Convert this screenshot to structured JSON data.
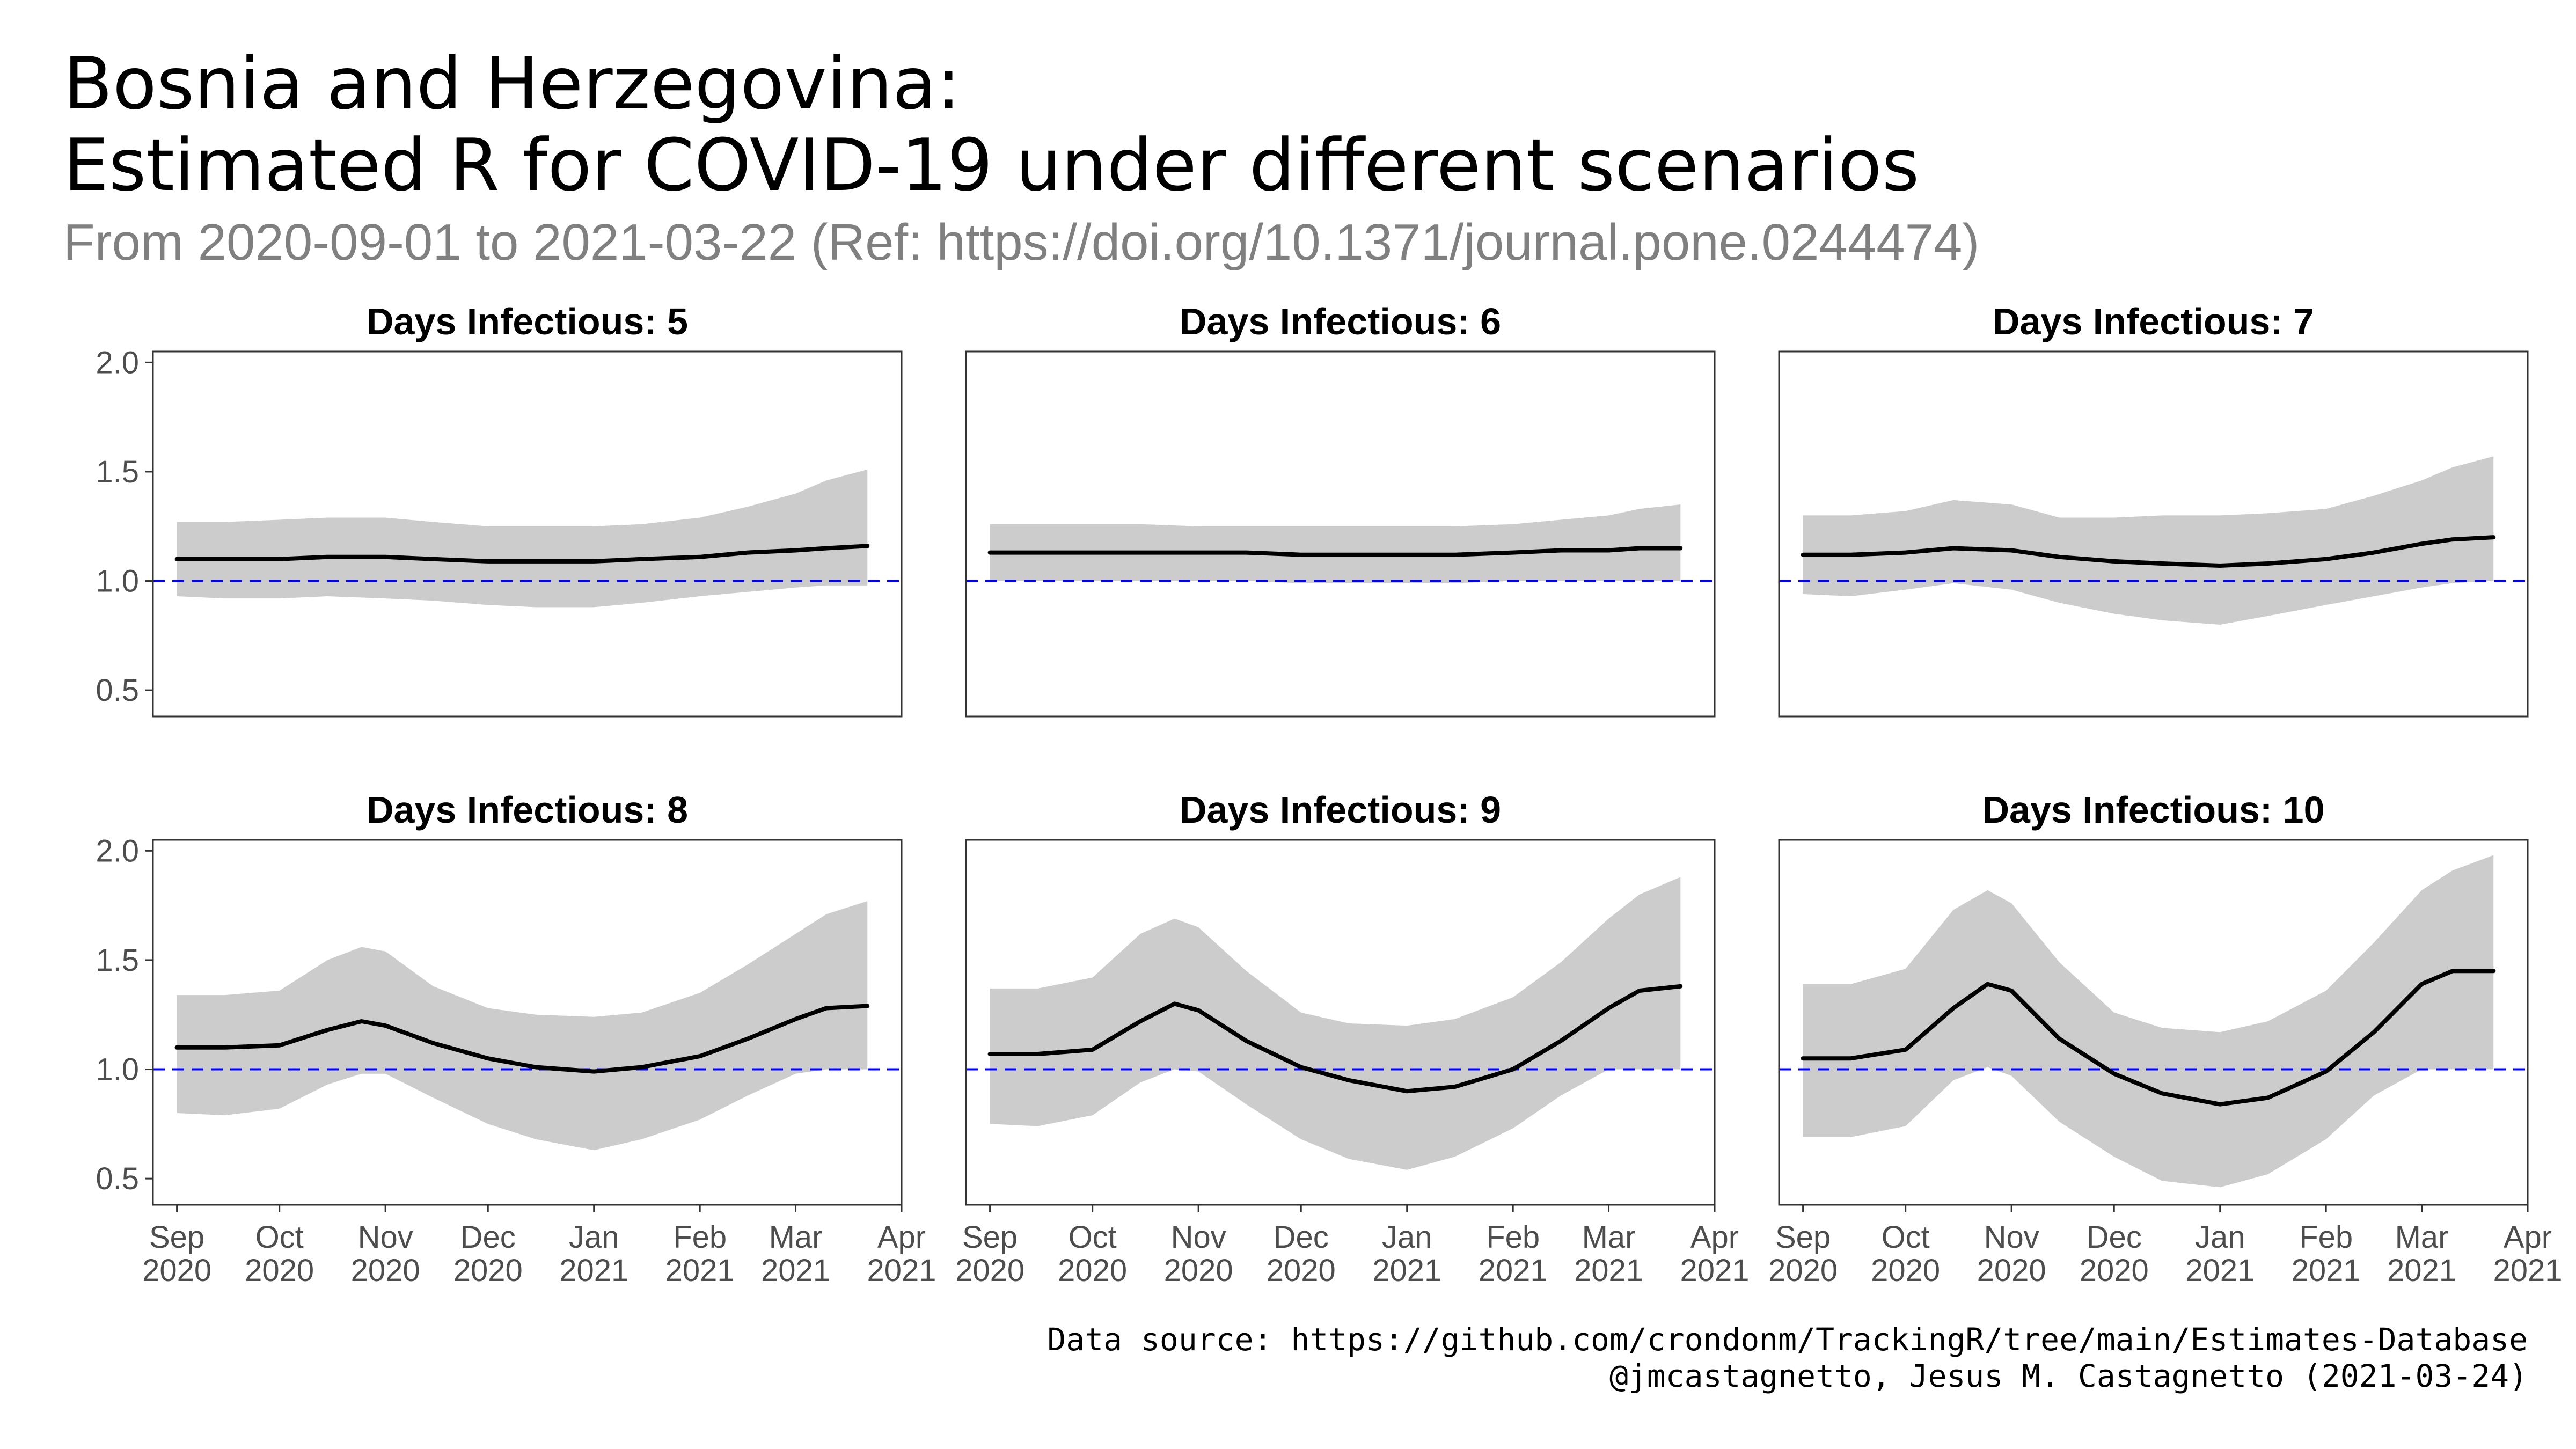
{
  "title_line1": "Bosnia and Herzegovina:",
  "title_line2": "Estimated R for COVID-19 under different scenarios",
  "subtitle": "From 2020-09-01 to 2021-03-22 (Ref: https://doi.org/10.1371/journal.pone.0244474)",
  "caption_line1": "Data source: https://github.com/crondonm/TrackingR/tree/main/Estimates-Database",
  "caption_line2": "@jmcastagnetto, Jesus M. Castagnetto (2021-03-24)",
  "colors": {
    "ribbon": "#cccccc",
    "line": "#000000",
    "reference": "#0000ff",
    "panel_border": "#333333"
  },
  "chart_data": {
    "type": "line",
    "facet_by": "Days Infectious",
    "x_range": [
      "2020-08-25",
      "2021-04-01"
    ],
    "y_range": [
      0.38,
      2.05
    ],
    "x_ticks": [
      {
        "date": "2020-09-01",
        "month": "Sep",
        "year": "2020"
      },
      {
        "date": "2020-10-01",
        "month": "Oct",
        "year": "2020"
      },
      {
        "date": "2020-11-01",
        "month": "Nov",
        "year": "2020"
      },
      {
        "date": "2020-12-01",
        "month": "Dec",
        "year": "2020"
      },
      {
        "date": "2021-01-01",
        "month": "Jan",
        "year": "2021"
      },
      {
        "date": "2021-02-01",
        "month": "Feb",
        "year": "2021"
      },
      {
        "date": "2021-03-01",
        "month": "Mar",
        "year": "2021"
      },
      {
        "date": "2021-04-01",
        "month": "Apr",
        "year": "2021"
      }
    ],
    "y_ticks": [
      "0.5",
      "1.0",
      "1.5",
      "2.0"
    ],
    "reference_line": 1.0,
    "panels": [
      {
        "label": "Days Infectious: 5",
        "series": {
          "x": [
            "2020-09-01",
            "2020-09-15",
            "2020-10-01",
            "2020-10-15",
            "2020-11-01",
            "2020-11-15",
            "2020-12-01",
            "2020-12-15",
            "2021-01-01",
            "2021-01-15",
            "2021-02-01",
            "2021-02-15",
            "2021-03-01",
            "2021-03-10",
            "2021-03-22"
          ],
          "r": [
            1.1,
            1.1,
            1.1,
            1.11,
            1.11,
            1.1,
            1.09,
            1.09,
            1.09,
            1.1,
            1.11,
            1.13,
            1.14,
            1.15,
            1.16
          ],
          "lower": [
            0.93,
            0.92,
            0.92,
            0.93,
            0.92,
            0.91,
            0.89,
            0.88,
            0.88,
            0.9,
            0.93,
            0.95,
            0.97,
            0.98,
            0.98
          ],
          "upper": [
            1.27,
            1.27,
            1.28,
            1.29,
            1.29,
            1.27,
            1.25,
            1.25,
            1.25,
            1.26,
            1.29,
            1.34,
            1.4,
            1.46,
            1.51
          ]
        }
      },
      {
        "label": "Days Infectious: 6",
        "series": {
          "x": [
            "2020-09-01",
            "2020-09-15",
            "2020-10-01",
            "2020-10-15",
            "2020-11-01",
            "2020-11-15",
            "2020-12-01",
            "2020-12-15",
            "2021-01-01",
            "2021-01-15",
            "2021-02-01",
            "2021-02-15",
            "2021-03-01",
            "2021-03-10",
            "2021-03-22"
          ],
          "r": [
            1.13,
            1.13,
            1.13,
            1.13,
            1.13,
            1.13,
            1.12,
            1.12,
            1.12,
            1.12,
            1.13,
            1.14,
            1.14,
            1.15,
            1.15
          ],
          "lower": [
            1.0,
            1.0,
            1.0,
            1.0,
            1.0,
            1.0,
            0.99,
            0.99,
            0.99,
            0.99,
            1.0,
            1.0,
            1.0,
            1.0,
            1.0
          ],
          "upper": [
            1.26,
            1.26,
            1.26,
            1.26,
            1.25,
            1.25,
            1.25,
            1.25,
            1.25,
            1.25,
            1.26,
            1.28,
            1.3,
            1.33,
            1.35
          ]
        }
      },
      {
        "label": "Days Infectious: 7",
        "series": {
          "x": [
            "2020-09-01",
            "2020-09-15",
            "2020-10-01",
            "2020-10-15",
            "2020-11-01",
            "2020-11-15",
            "2020-12-01",
            "2020-12-15",
            "2021-01-01",
            "2021-01-15",
            "2021-02-01",
            "2021-02-15",
            "2021-03-01",
            "2021-03-10",
            "2021-03-22"
          ],
          "r": [
            1.12,
            1.12,
            1.13,
            1.15,
            1.14,
            1.11,
            1.09,
            1.08,
            1.07,
            1.08,
            1.1,
            1.13,
            1.17,
            1.19,
            1.2
          ],
          "lower": [
            0.94,
            0.93,
            0.96,
            0.99,
            0.96,
            0.9,
            0.85,
            0.82,
            0.8,
            0.84,
            0.89,
            0.93,
            0.97,
            0.99,
            1.0
          ],
          "upper": [
            1.3,
            1.3,
            1.32,
            1.37,
            1.35,
            1.29,
            1.29,
            1.3,
            1.3,
            1.31,
            1.33,
            1.39,
            1.46,
            1.52,
            1.57
          ]
        }
      },
      {
        "label": "Days Infectious: 8",
        "series": {
          "x": [
            "2020-09-01",
            "2020-09-15",
            "2020-10-01",
            "2020-10-15",
            "2020-10-25",
            "2020-11-01",
            "2020-11-15",
            "2020-12-01",
            "2020-12-15",
            "2021-01-01",
            "2021-01-15",
            "2021-02-01",
            "2021-02-15",
            "2021-03-01",
            "2021-03-10",
            "2021-03-22"
          ],
          "r": [
            1.1,
            1.1,
            1.11,
            1.18,
            1.22,
            1.2,
            1.12,
            1.05,
            1.01,
            0.99,
            1.01,
            1.06,
            1.14,
            1.23,
            1.28,
            1.29
          ],
          "lower": [
            0.8,
            0.79,
            0.82,
            0.93,
            0.98,
            0.98,
            0.87,
            0.75,
            0.68,
            0.63,
            0.68,
            0.77,
            0.88,
            0.98,
            1.0,
            1.0
          ],
          "upper": [
            1.34,
            1.34,
            1.36,
            1.5,
            1.56,
            1.54,
            1.38,
            1.28,
            1.25,
            1.24,
            1.26,
            1.35,
            1.48,
            1.62,
            1.71,
            1.77
          ]
        }
      },
      {
        "label": "Days Infectious: 9",
        "series": {
          "x": [
            "2020-09-01",
            "2020-09-15",
            "2020-10-01",
            "2020-10-15",
            "2020-10-25",
            "2020-11-01",
            "2020-11-15",
            "2020-12-01",
            "2020-12-15",
            "2021-01-01",
            "2021-01-15",
            "2021-02-01",
            "2021-02-15",
            "2021-03-01",
            "2021-03-10",
            "2021-03-22"
          ],
          "r": [
            1.07,
            1.07,
            1.09,
            1.22,
            1.3,
            1.27,
            1.13,
            1.01,
            0.95,
            0.9,
            0.92,
            1.0,
            1.13,
            1.28,
            1.36,
            1.38
          ],
          "lower": [
            0.75,
            0.74,
            0.79,
            0.94,
            1.0,
            0.99,
            0.84,
            0.68,
            0.59,
            0.54,
            0.6,
            0.73,
            0.88,
            1.0,
            1.0,
            1.0
          ],
          "upper": [
            1.37,
            1.37,
            1.42,
            1.62,
            1.69,
            1.65,
            1.45,
            1.26,
            1.21,
            1.2,
            1.23,
            1.33,
            1.49,
            1.69,
            1.8,
            1.88
          ]
        }
      },
      {
        "label": "Days Infectious: 10",
        "series": {
          "x": [
            "2020-09-01",
            "2020-09-15",
            "2020-10-01",
            "2020-10-15",
            "2020-10-25",
            "2020-11-01",
            "2020-11-15",
            "2020-12-01",
            "2020-12-15",
            "2021-01-01",
            "2021-01-15",
            "2021-02-01",
            "2021-02-15",
            "2021-03-01",
            "2021-03-10",
            "2021-03-22"
          ],
          "r": [
            1.05,
            1.05,
            1.09,
            1.28,
            1.39,
            1.36,
            1.14,
            0.98,
            0.89,
            0.84,
            0.87,
            0.99,
            1.17,
            1.39,
            1.45,
            1.45
          ],
          "lower": [
            0.69,
            0.69,
            0.74,
            0.95,
            1.01,
            0.97,
            0.76,
            0.6,
            0.49,
            0.46,
            0.52,
            0.68,
            0.88,
            1.0,
            1.0,
            1.0
          ],
          "upper": [
            1.39,
            1.39,
            1.46,
            1.73,
            1.82,
            1.76,
            1.49,
            1.26,
            1.19,
            1.17,
            1.22,
            1.36,
            1.58,
            1.82,
            1.91,
            1.98
          ]
        }
      }
    ]
  }
}
